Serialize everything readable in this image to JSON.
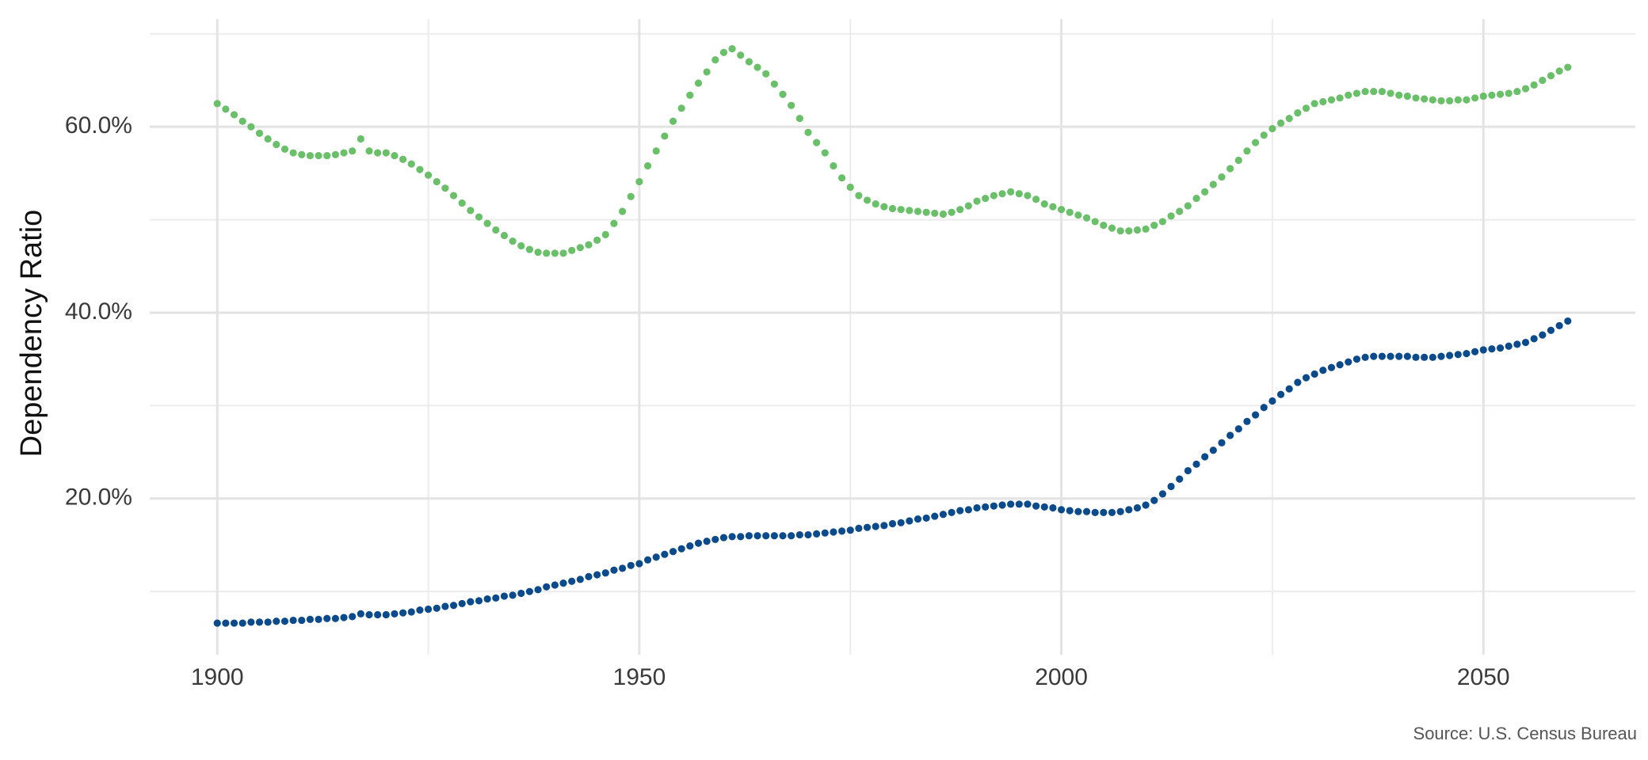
{
  "chart_data": {
    "type": "scatter",
    "ylabel": "Dependency Ratio",
    "caption": "Source: U.S. Census Bureau",
    "x": [
      1900,
      1901,
      1902,
      1903,
      1904,
      1905,
      1906,
      1907,
      1908,
      1909,
      1910,
      1911,
      1912,
      1913,
      1914,
      1915,
      1916,
      1917,
      1918,
      1919,
      1920,
      1921,
      1922,
      1923,
      1924,
      1925,
      1926,
      1927,
      1928,
      1929,
      1930,
      1931,
      1932,
      1933,
      1934,
      1935,
      1936,
      1937,
      1938,
      1939,
      1940,
      1941,
      1942,
      1943,
      1944,
      1945,
      1946,
      1947,
      1948,
      1949,
      1950,
      1951,
      1952,
      1953,
      1954,
      1955,
      1956,
      1957,
      1958,
      1959,
      1960,
      1961,
      1962,
      1963,
      1964,
      1965,
      1966,
      1967,
      1968,
      1969,
      1970,
      1971,
      1972,
      1973,
      1974,
      1975,
      1976,
      1977,
      1978,
      1979,
      1980,
      1981,
      1982,
      1983,
      1984,
      1985,
      1986,
      1987,
      1988,
      1989,
      1990,
      1991,
      1992,
      1993,
      1994,
      1995,
      1996,
      1997,
      1998,
      1999,
      2000,
      2001,
      2002,
      2003,
      2004,
      2005,
      2006,
      2007,
      2008,
      2009,
      2010,
      2011,
      2012,
      2013,
      2014,
      2015,
      2016,
      2017,
      2018,
      2019,
      2020,
      2021,
      2022,
      2023,
      2024,
      2025,
      2026,
      2027,
      2028,
      2029,
      2030,
      2031,
      2032,
      2033,
      2034,
      2035,
      2036,
      2037,
      2038,
      2039,
      2040,
      2041,
      2042,
      2043,
      2044,
      2045,
      2046,
      2047,
      2048,
      2049,
      2050,
      2051,
      2052,
      2053,
      2054,
      2055,
      2056,
      2057,
      2058,
      2059,
      2060
    ],
    "series": [
      {
        "color": "#6abf69",
        "values": [
          62.5,
          61.9,
          61.3,
          60.6,
          60.0,
          59.3,
          58.7,
          58.1,
          57.6,
          57.2,
          57.0,
          56.9,
          56.9,
          56.9,
          57.0,
          57.2,
          57.4,
          58.7,
          57.4,
          57.2,
          57.2,
          56.9,
          56.5,
          56.0,
          55.4,
          54.8,
          54.1,
          53.4,
          52.6,
          51.8,
          51.0,
          50.3,
          49.6,
          48.9,
          48.3,
          47.7,
          47.2,
          46.8,
          46.5,
          46.4,
          46.4,
          46.4,
          46.7,
          47.0,
          47.3,
          47.8,
          48.4,
          49.6,
          50.9,
          52.5,
          54.1,
          55.8,
          57.4,
          59.0,
          60.6,
          62.0,
          63.4,
          64.7,
          65.9,
          67.2,
          68.0,
          68.4,
          67.7,
          67.0,
          66.4,
          65.7,
          64.6,
          63.5,
          62.3,
          60.9,
          59.4,
          58.3,
          57.2,
          55.8,
          54.5,
          53.5,
          52.6,
          52.1,
          51.7,
          51.4,
          51.2,
          51.1,
          51.0,
          50.9,
          50.8,
          50.7,
          50.6,
          50.8,
          51.1,
          51.5,
          52.0,
          52.3,
          52.6,
          52.8,
          53.0,
          52.8,
          52.6,
          52.2,
          51.7,
          51.4,
          51.1,
          50.8,
          50.5,
          50.2,
          49.8,
          49.4,
          49.1,
          48.8,
          48.8,
          48.9,
          49.0,
          49.4,
          49.8,
          50.4,
          50.9,
          51.5,
          52.3,
          53.0,
          53.8,
          54.6,
          55.5,
          56.4,
          57.4,
          58.3,
          59.1,
          59.8,
          60.4,
          60.9,
          61.5,
          62.0,
          62.5,
          62.7,
          62.9,
          63.1,
          63.4,
          63.6,
          63.8,
          63.8,
          63.8,
          63.6,
          63.4,
          63.3,
          63.1,
          63.0,
          62.9,
          62.8,
          62.8,
          62.9,
          62.9,
          63.1,
          63.3,
          63.4,
          63.5,
          63.6,
          63.8,
          64.1,
          64.5,
          65.0,
          65.5,
          66.0,
          66.4
        ]
      },
      {
        "color": "#0b4a8b",
        "values": [
          6.6,
          6.6,
          6.6,
          6.6,
          6.7,
          6.7,
          6.7,
          6.8,
          6.8,
          6.9,
          6.9,
          7.0,
          7.0,
          7.1,
          7.1,
          7.2,
          7.3,
          7.6,
          7.5,
          7.5,
          7.5,
          7.6,
          7.7,
          7.8,
          8.0,
          8.1,
          8.2,
          8.4,
          8.5,
          8.7,
          8.9,
          9.0,
          9.2,
          9.3,
          9.5,
          9.6,
          9.8,
          10.0,
          10.2,
          10.5,
          10.7,
          10.9,
          11.1,
          11.3,
          11.6,
          11.8,
          12.0,
          12.3,
          12.5,
          12.8,
          13.0,
          13.4,
          13.7,
          14.0,
          14.3,
          14.6,
          14.9,
          15.2,
          15.4,
          15.6,
          15.8,
          15.9,
          15.9,
          16.0,
          16.0,
          16.0,
          16.0,
          16.0,
          16.0,
          16.1,
          16.1,
          16.2,
          16.3,
          16.4,
          16.5,
          16.6,
          16.8,
          16.9,
          17.0,
          17.1,
          17.3,
          17.4,
          17.6,
          17.8,
          17.9,
          18.1,
          18.3,
          18.5,
          18.7,
          18.8,
          19.0,
          19.1,
          19.2,
          19.3,
          19.4,
          19.4,
          19.4,
          19.2,
          19.1,
          19.0,
          18.8,
          18.7,
          18.6,
          18.6,
          18.5,
          18.5,
          18.5,
          18.6,
          18.8,
          19.0,
          19.3,
          19.8,
          20.5,
          21.3,
          22.1,
          23.0,
          23.7,
          24.5,
          25.2,
          26.0,
          26.8,
          27.5,
          28.3,
          29.0,
          29.8,
          30.5,
          31.2,
          31.8,
          32.5,
          33.0,
          33.4,
          33.8,
          34.1,
          34.4,
          34.7,
          35.0,
          35.2,
          35.3,
          35.3,
          35.3,
          35.3,
          35.3,
          35.2,
          35.2,
          35.2,
          35.3,
          35.4,
          35.5,
          35.6,
          35.8,
          36.0,
          36.1,
          36.2,
          36.4,
          36.6,
          36.8,
          37.2,
          37.6,
          38.1,
          38.6,
          39.1
        ]
      }
    ],
    "xlim": [
      1892,
      2068
    ],
    "xticks": [
      1900,
      1950,
      2000,
      2050
    ],
    "xgrid_minor": [
      1925,
      1975,
      2025
    ],
    "ylim": [
      3.2,
      71.6
    ],
    "yticks": [
      {
        "value": 20,
        "label": "20.0%"
      },
      {
        "value": 40,
        "label": "40.0%"
      },
      {
        "value": 60,
        "label": "60.0%"
      }
    ],
    "ygrid_minor": [
      10,
      30,
      50,
      70
    ],
    "grid": true
  }
}
